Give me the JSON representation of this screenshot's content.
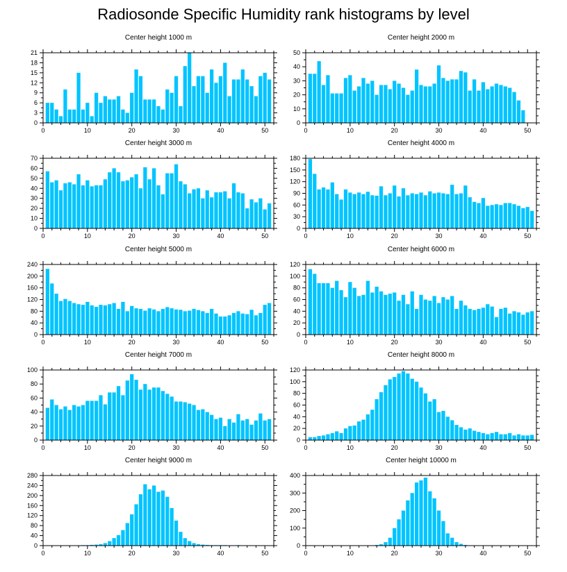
{
  "title": "Radiosonde Specific Humidity rank histograms by level",
  "colors": {
    "bar": "#00c4ff",
    "axis": "#000000"
  },
  "chart_data": [
    {
      "type": "bar",
      "title": "Center height 1000 m",
      "xlabel": "",
      "ylabel": "",
      "xlim": [
        0,
        52
      ],
      "ylim": [
        0,
        21
      ],
      "xticks": [
        0,
        10,
        20,
        30,
        40,
        50
      ],
      "yticks": [
        0,
        3,
        6,
        9,
        12,
        15,
        18,
        21
      ],
      "categories": [
        1,
        2,
        3,
        4,
        5,
        6,
        7,
        8,
        9,
        10,
        11,
        12,
        13,
        14,
        15,
        16,
        17,
        18,
        19,
        20,
        21,
        22,
        23,
        24,
        25,
        26,
        27,
        28,
        29,
        30,
        31,
        32,
        33,
        34,
        35,
        36,
        37,
        38,
        39,
        40,
        41,
        42,
        43,
        44,
        45,
        46,
        47,
        48,
        49,
        50,
        51
      ],
      "values": [
        6,
        6,
        4,
        2,
        10,
        4,
        4,
        15,
        4,
        6,
        2,
        9,
        6,
        8,
        7,
        7,
        8,
        4,
        3,
        9,
        16,
        14,
        7,
        7,
        7,
        5,
        4,
        10,
        9,
        14,
        5,
        17,
        21,
        11,
        14,
        14,
        9,
        16,
        12,
        14,
        18,
        8,
        13,
        13,
        16,
        13,
        11,
        8,
        14,
        15,
        13
      ]
    },
    {
      "type": "bar",
      "title": "Center height 2000 m",
      "xlabel": "",
      "ylabel": "",
      "xlim": [
        0,
        52
      ],
      "ylim": [
        0,
        50
      ],
      "xticks": [
        0,
        10,
        20,
        30,
        40,
        50
      ],
      "yticks": [
        0,
        10,
        20,
        30,
        40,
        50
      ],
      "categories": [
        1,
        2,
        3,
        4,
        5,
        6,
        7,
        8,
        9,
        10,
        11,
        12,
        13,
        14,
        15,
        16,
        17,
        18,
        19,
        20,
        21,
        22,
        23,
        24,
        25,
        26,
        27,
        28,
        29,
        30,
        31,
        32,
        33,
        34,
        35,
        36,
        37,
        38,
        39,
        40,
        41,
        42,
        43,
        44,
        45,
        46,
        47,
        48,
        49,
        50,
        51
      ],
      "values": [
        35,
        35,
        44,
        27,
        34,
        21,
        21,
        21,
        32,
        34,
        23,
        26,
        32,
        28,
        30,
        20,
        27,
        27,
        24,
        30,
        28,
        25,
        20,
        23,
        38,
        27,
        26,
        26,
        28,
        41,
        32,
        30,
        31,
        31,
        37,
        36,
        23,
        31,
        23,
        29,
        24,
        26,
        28,
        27,
        26,
        25,
        22,
        16,
        9,
        0,
        0
      ]
    },
    {
      "type": "bar",
      "title": "Center height 3000 m",
      "xlabel": "",
      "ylabel": "",
      "xlim": [
        0,
        52
      ],
      "ylim": [
        0,
        70
      ],
      "xticks": [
        0,
        10,
        20,
        30,
        40,
        50
      ],
      "yticks": [
        0,
        10,
        20,
        30,
        40,
        50,
        60,
        70
      ],
      "categories": [
        1,
        2,
        3,
        4,
        5,
        6,
        7,
        8,
        9,
        10,
        11,
        12,
        13,
        14,
        15,
        16,
        17,
        18,
        19,
        20,
        21,
        22,
        23,
        24,
        25,
        26,
        27,
        28,
        29,
        30,
        31,
        32,
        33,
        34,
        35,
        36,
        37,
        38,
        39,
        40,
        41,
        42,
        43,
        44,
        45,
        46,
        47,
        48,
        49,
        50,
        51
      ],
      "values": [
        57,
        46,
        48,
        38,
        45,
        46,
        44,
        54,
        43,
        48,
        42,
        43,
        43,
        49,
        56,
        60,
        56,
        47,
        48,
        51,
        54,
        40,
        61,
        49,
        60,
        43,
        34,
        55,
        55,
        64,
        47,
        44,
        35,
        39,
        40,
        30,
        38,
        31,
        36,
        36,
        37,
        30,
        45,
        36,
        35,
        20,
        29,
        26,
        30,
        19,
        25
      ]
    },
    {
      "type": "bar",
      "title": "Center height 4000 m",
      "xlabel": "",
      "ylabel": "",
      "xlim": [
        0,
        52
      ],
      "ylim": [
        0,
        180
      ],
      "xticks": [
        0,
        10,
        20,
        30,
        40,
        50
      ],
      "yticks": [
        0,
        30,
        60,
        90,
        120,
        150,
        180
      ],
      "categories": [
        1,
        2,
        3,
        4,
        5,
        6,
        7,
        8,
        9,
        10,
        11,
        12,
        13,
        14,
        15,
        16,
        17,
        18,
        19,
        20,
        21,
        22,
        23,
        24,
        25,
        26,
        27,
        28,
        29,
        30,
        31,
        32,
        33,
        34,
        35,
        36,
        37,
        38,
        39,
        40,
        41,
        42,
        43,
        44,
        45,
        46,
        47,
        48,
        49,
        50,
        51
      ],
      "values": [
        178,
        140,
        100,
        105,
        100,
        118,
        88,
        74,
        100,
        92,
        88,
        92,
        88,
        94,
        85,
        84,
        108,
        85,
        90,
        110,
        82,
        103,
        85,
        90,
        88,
        92,
        85,
        95,
        90,
        92,
        90,
        88,
        112,
        88,
        90,
        110,
        80,
        68,
        65,
        78,
        58,
        60,
        62,
        60,
        65,
        65,
        62,
        58,
        52,
        55,
        45
      ]
    },
    {
      "type": "bar",
      "title": "Center height 5000 m",
      "xlabel": "",
      "ylabel": "",
      "xlim": [
        0,
        52
      ],
      "ylim": [
        0,
        240
      ],
      "xticks": [
        0,
        10,
        20,
        30,
        40,
        50
      ],
      "yticks": [
        0,
        40,
        80,
        120,
        160,
        200,
        240
      ],
      "categories": [
        1,
        2,
        3,
        4,
        5,
        6,
        7,
        8,
        9,
        10,
        11,
        12,
        13,
        14,
        15,
        16,
        17,
        18,
        19,
        20,
        21,
        22,
        23,
        24,
        25,
        26,
        27,
        28,
        29,
        30,
        31,
        32,
        33,
        34,
        35,
        36,
        37,
        38,
        39,
        40,
        41,
        42,
        43,
        44,
        45,
        46,
        47,
        48,
        49,
        50,
        51
      ],
      "values": [
        225,
        175,
        140,
        115,
        122,
        115,
        108,
        104,
        102,
        112,
        100,
        95,
        102,
        100,
        104,
        108,
        88,
        112,
        80,
        98,
        90,
        88,
        82,
        90,
        86,
        80,
        88,
        94,
        90,
        86,
        85,
        80,
        82,
        88,
        84,
        80,
        74,
        88,
        72,
        62,
        62,
        66,
        74,
        80,
        72,
        70,
        85,
        66,
        74,
        102,
        108
      ]
    },
    {
      "type": "bar",
      "title": "Center height 6000 m",
      "xlabel": "",
      "ylabel": "",
      "xlim": [
        0,
        52
      ],
      "ylim": [
        0,
        120
      ],
      "xticks": [
        0,
        10,
        20,
        30,
        40,
        50
      ],
      "yticks": [
        0,
        20,
        40,
        60,
        80,
        100,
        120
      ],
      "categories": [
        1,
        2,
        3,
        4,
        5,
        6,
        7,
        8,
        9,
        10,
        11,
        12,
        13,
        14,
        15,
        16,
        17,
        18,
        19,
        20,
        21,
        22,
        23,
        24,
        25,
        26,
        27,
        28,
        29,
        30,
        31,
        32,
        33,
        34,
        35,
        36,
        37,
        38,
        39,
        40,
        41,
        42,
        43,
        44,
        45,
        46,
        47,
        48,
        49,
        50,
        51
      ],
      "values": [
        112,
        104,
        88,
        88,
        88,
        80,
        92,
        76,
        64,
        90,
        80,
        66,
        68,
        92,
        72,
        82,
        74,
        68,
        70,
        72,
        58,
        68,
        52,
        74,
        44,
        68,
        60,
        58,
        66,
        54,
        64,
        60,
        66,
        44,
        58,
        50,
        44,
        42,
        44,
        46,
        52,
        48,
        30,
        44,
        46,
        36,
        40,
        38,
        34,
        38,
        40
      ]
    },
    {
      "type": "bar",
      "title": "Center height 7000 m",
      "xlabel": "",
      "ylabel": "",
      "xlim": [
        0,
        52
      ],
      "ylim": [
        0,
        100
      ],
      "xticks": [
        0,
        10,
        20,
        30,
        40,
        50
      ],
      "yticks": [
        0,
        20,
        40,
        60,
        80,
        100
      ],
      "categories": [
        1,
        2,
        3,
        4,
        5,
        6,
        7,
        8,
        9,
        10,
        11,
        12,
        13,
        14,
        15,
        16,
        17,
        18,
        19,
        20,
        21,
        22,
        23,
        24,
        25,
        26,
        27,
        28,
        29,
        30,
        31,
        32,
        33,
        34,
        35,
        36,
        37,
        38,
        39,
        40,
        41,
        42,
        43,
        44,
        45,
        46,
        47,
        48,
        49,
        50,
        51
      ],
      "values": [
        46,
        58,
        50,
        44,
        48,
        43,
        50,
        48,
        50,
        56,
        56,
        56,
        64,
        51,
        68,
        68,
        77,
        64,
        85,
        94,
        86,
        72,
        80,
        72,
        75,
        75,
        70,
        66,
        62,
        55,
        55,
        54,
        52,
        50,
        43,
        44,
        40,
        36,
        30,
        32,
        20,
        30,
        25,
        37,
        28,
        30,
        22,
        28,
        38,
        28,
        30
      ]
    },
    {
      "type": "bar",
      "title": "Center height 8000 m",
      "xlabel": "",
      "ylabel": "",
      "xlim": [
        0,
        52
      ],
      "ylim": [
        0,
        120
      ],
      "xticks": [
        0,
        10,
        20,
        30,
        40,
        50
      ],
      "yticks": [
        0,
        20,
        40,
        60,
        80,
        100,
        120
      ],
      "categories": [
        1,
        2,
        3,
        4,
        5,
        6,
        7,
        8,
        9,
        10,
        11,
        12,
        13,
        14,
        15,
        16,
        17,
        18,
        19,
        20,
        21,
        22,
        23,
        24,
        25,
        26,
        27,
        28,
        29,
        30,
        31,
        32,
        33,
        34,
        35,
        36,
        37,
        38,
        39,
        40,
        41,
        42,
        43,
        44,
        45,
        46,
        47,
        48,
        49,
        50,
        51
      ],
      "values": [
        5,
        5,
        7,
        8,
        10,
        12,
        15,
        12,
        20,
        24,
        25,
        32,
        35,
        44,
        52,
        70,
        82,
        94,
        104,
        108,
        114,
        118,
        114,
        105,
        100,
        90,
        80,
        66,
        70,
        48,
        50,
        40,
        34,
        26,
        22,
        18,
        20,
        16,
        14,
        12,
        10,
        12,
        14,
        10,
        10,
        12,
        8,
        10,
        8,
        8,
        9
      ]
    },
    {
      "type": "bar",
      "title": "Center height 9000 m",
      "xlabel": "",
      "ylabel": "",
      "xlim": [
        0,
        52
      ],
      "ylim": [
        0,
        280
      ],
      "xticks": [
        0,
        10,
        20,
        30,
        40,
        50
      ],
      "yticks": [
        0,
        40,
        80,
        120,
        160,
        200,
        240,
        280
      ],
      "categories": [
        1,
        2,
        3,
        4,
        5,
        6,
        7,
        8,
        9,
        10,
        11,
        12,
        13,
        14,
        15,
        16,
        17,
        18,
        19,
        20,
        21,
        22,
        23,
        24,
        25,
        26,
        27,
        28,
        29,
        30,
        31,
        32,
        33,
        34,
        35,
        36,
        37,
        38,
        39,
        40,
        41,
        42,
        43,
        44,
        45,
        46,
        47,
        48,
        49,
        50,
        51
      ],
      "values": [
        0,
        0,
        0,
        0,
        0,
        0,
        0,
        1,
        2,
        2,
        3,
        4,
        6,
        10,
        18,
        30,
        42,
        62,
        90,
        125,
        165,
        205,
        245,
        225,
        240,
        215,
        220,
        195,
        150,
        100,
        55,
        30,
        18,
        10,
        6,
        4,
        3,
        2,
        2,
        2,
        2,
        1,
        1,
        2,
        1,
        1,
        1,
        1,
        0,
        0,
        0
      ]
    },
    {
      "type": "bar",
      "title": "Center height 10000 m",
      "xlabel": "",
      "ylabel": "",
      "xlim": [
        0,
        52
      ],
      "ylim": [
        0,
        400
      ],
      "xticks": [
        0,
        10,
        20,
        30,
        40,
        50
      ],
      "yticks": [
        0,
        100,
        200,
        300,
        400
      ],
      "categories": [
        1,
        2,
        3,
        4,
        5,
        6,
        7,
        8,
        9,
        10,
        11,
        12,
        13,
        14,
        15,
        16,
        17,
        18,
        19,
        20,
        21,
        22,
        23,
        24,
        25,
        26,
        27,
        28,
        29,
        30,
        31,
        32,
        33,
        34,
        35,
        36,
        37,
        38,
        39,
        40,
        41,
        42,
        43,
        44,
        45,
        46,
        47,
        48,
        49,
        50,
        51
      ],
      "values": [
        0,
        0,
        0,
        0,
        0,
        0,
        0,
        0,
        0,
        0,
        0,
        0,
        0,
        0,
        2,
        4,
        8,
        20,
        45,
        100,
        150,
        200,
        258,
        300,
        360,
        372,
        388,
        310,
        270,
        200,
        140,
        70,
        45,
        20,
        10,
        4,
        2,
        1,
        1,
        1,
        0,
        0,
        0,
        0,
        0,
        0,
        0,
        0,
        0,
        0,
        0
      ]
    }
  ]
}
